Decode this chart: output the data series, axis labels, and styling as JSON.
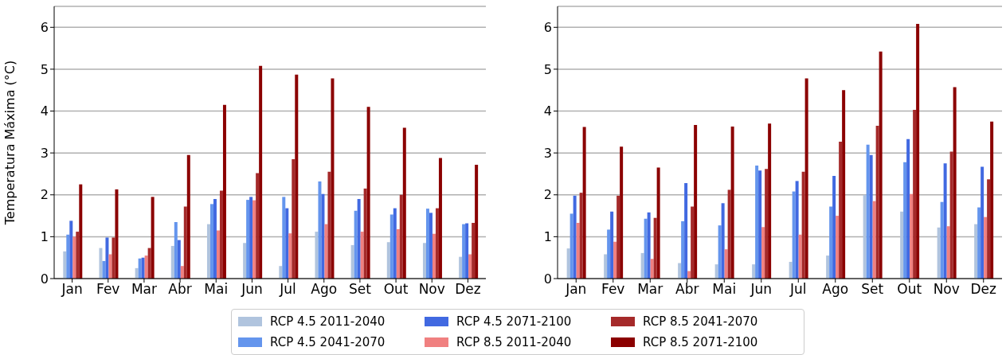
{
  "chart_data": [
    {
      "type": "bar",
      "ylabel": "Temperatura Máxima (°C)",
      "categories": [
        "Jan",
        "Fev",
        "Mar",
        "Abr",
        "Mai",
        "Jun",
        "Jul",
        "Ago",
        "Set",
        "Out",
        "Nov",
        "Dez"
      ],
      "ylim": [
        0,
        6.5
      ],
      "yticks": [
        0,
        1,
        2,
        3,
        4,
        5,
        6
      ],
      "grid": "y",
      "legend": "bottom",
      "series": [
        {
          "name": "RCP 4.5 2011-2040",
          "color": "#b0c4de",
          "values": [
            0.65,
            0.73,
            0.25,
            0.78,
            1.3,
            0.85,
            0.3,
            1.12,
            0.8,
            0.87,
            0.85,
            0.52
          ]
        },
        {
          "name": "RCP 4.5 2041-2070",
          "color": "#6495ed",
          "values": [
            1.05,
            0.42,
            0.48,
            1.35,
            1.78,
            1.88,
            1.95,
            2.32,
            1.62,
            1.53,
            1.67,
            1.3
          ]
        },
        {
          "name": "RCP 4.5 2071-2100",
          "color": "#4169e1",
          "values": [
            1.38,
            0.98,
            0.5,
            0.92,
            1.9,
            1.95,
            1.68,
            2.02,
            1.9,
            1.68,
            1.57,
            1.32
          ]
        },
        {
          "name": "RCP 8.5 2011-2040",
          "color": "#f08080",
          "values": [
            1.0,
            0.58,
            0.55,
            0.3,
            1.15,
            1.87,
            1.08,
            1.3,
            1.12,
            1.18,
            1.07,
            0.58
          ]
        },
        {
          "name": "RCP 8.5 2041-2070",
          "color": "#a52a2a",
          "values": [
            1.12,
            0.98,
            0.73,
            1.72,
            2.1,
            2.52,
            2.85,
            2.55,
            2.15,
            2.0,
            1.68,
            1.33
          ]
        },
        {
          "name": "RCP 8.5 2071-2100",
          "color": "#8b0000",
          "values": [
            2.25,
            2.13,
            1.95,
            2.95,
            4.15,
            5.08,
            4.87,
            4.78,
            4.1,
            3.6,
            2.88,
            2.72
          ]
        }
      ]
    },
    {
      "type": "bar",
      "categories": [
        "Jan",
        "Fev",
        "Mar",
        "Abr",
        "Mai",
        "Jun",
        "Jul",
        "Ago",
        "Set",
        "Out",
        "Nov",
        "Dez"
      ],
      "ylim": [
        0,
        6.5
      ],
      "yticks": [
        0,
        1,
        2,
        3,
        4,
        5,
        6
      ],
      "grid": "y",
      "series": [
        {
          "color": "#b0c4de",
          "values": [
            0.72,
            0.58,
            0.61,
            0.37,
            0.34,
            0.34,
            0.4,
            0.55,
            2.0,
            1.6,
            1.22,
            1.3
          ]
        },
        {
          "color": "#6495ed",
          "values": [
            1.55,
            1.17,
            1.43,
            1.37,
            1.27,
            2.7,
            2.08,
            1.72,
            3.2,
            2.78,
            1.83,
            1.7
          ]
        },
        {
          "color": "#4169e1",
          "values": [
            1.98,
            1.6,
            1.58,
            2.28,
            1.8,
            2.58,
            2.33,
            2.45,
            2.95,
            3.33,
            2.75,
            2.67
          ]
        },
        {
          "color": "#f08080",
          "values": [
            1.33,
            0.88,
            0.47,
            0.18,
            0.7,
            1.23,
            1.05,
            1.5,
            1.85,
            2.02,
            1.25,
            1.47
          ]
        },
        {
          "color": "#a52a2a",
          "values": [
            2.05,
            1.98,
            1.45,
            1.72,
            2.12,
            2.62,
            2.55,
            3.27,
            3.65,
            4.03,
            3.03,
            2.37
          ]
        },
        {
          "color": "#8b0000",
          "values": [
            3.62,
            3.15,
            2.65,
            3.67,
            3.63,
            3.7,
            4.78,
            4.5,
            5.42,
            6.08,
            4.57,
            3.75
          ]
        }
      ]
    }
  ]
}
